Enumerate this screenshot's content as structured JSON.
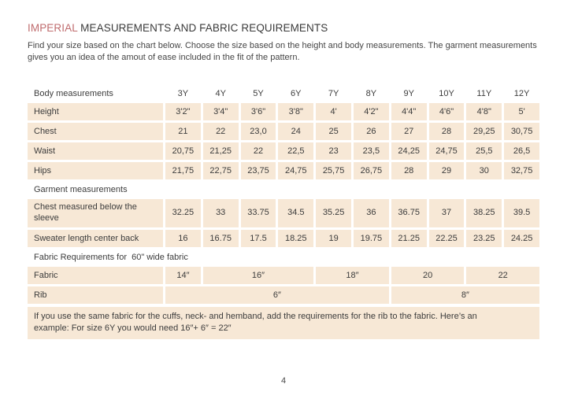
{
  "colors": {
    "accent": "#bf6b6d",
    "cell_bg": "#f7e8d6",
    "text": "#3d3d3d"
  },
  "page": {
    "title_accent": "IMPERIAL",
    "title_rest": " MEASUREMENTS AND FABRIC REQUIREMENTS",
    "intro_line1": "Find your size based on the chart below. Choose the size based on the height and body measurements. The garment measurements",
    "intro_line2": "gives you an idea of the amout of ease included in the fit of the pattern.",
    "page_number": "4"
  },
  "table": {
    "header": {
      "label": "Body measurements",
      "sizes": [
        "3Y",
        "4Y",
        "5Y",
        "6Y",
        "7Y",
        "8Y",
        "9Y",
        "10Y",
        "11Y",
        "12Y"
      ]
    },
    "body_rows": [
      {
        "label": "Height",
        "values": [
          "3'2\"",
          "3'4\"",
          "3'6\"",
          "3'8\"",
          "4'",
          "4'2\"",
          "4'4\"",
          "4'6\"",
          "4'8\"",
          "5'"
        ]
      },
      {
        "label": "Chest",
        "values": [
          "21",
          "22",
          "23,0",
          "24",
          "25",
          "26",
          "27",
          "28",
          "29,25",
          "30,75"
        ]
      },
      {
        "label": "Waist",
        "values": [
          "20,75",
          "21,25",
          "22",
          "22,5",
          "23",
          "23,5",
          "24,25",
          "24,75",
          "25,5",
          "26,5"
        ]
      },
      {
        "label": "Hips",
        "values": [
          "21,75",
          "22,75",
          "23,75",
          "24,75",
          "25,75",
          "26,75",
          "28",
          "29",
          "30",
          "32,75"
        ]
      }
    ],
    "garment_section": "Garment measurements",
    "garment_rows": [
      {
        "label": "Chest measured below the sleeve",
        "values": [
          "32.25",
          "33",
          "33.75",
          "34.5",
          "35.25",
          "36",
          "36.75",
          "37",
          "38.25",
          "39.5"
        ]
      },
      {
        "label": "Sweater length center back",
        "values": [
          "16",
          "16.75",
          "17.5",
          "18.25",
          "19",
          "19.75",
          "21.25",
          "22.25",
          "23.25",
          "24.25"
        ]
      }
    ],
    "fabric_section": "Fabric Requirements for  60\" wide fabric",
    "fabric_row": {
      "label": "Fabric",
      "cells": [
        {
          "text": "14″",
          "span": 1
        },
        {
          "text": "16″",
          "span": 3
        },
        {
          "text": "18″",
          "span": 2
        },
        {
          "text": "20",
          "span": 2
        },
        {
          "text": "22",
          "span": 2
        }
      ]
    },
    "rib_row": {
      "label": "Rib",
      "cells": [
        {
          "text": "6″",
          "span": 6
        },
        {
          "text": "8″",
          "span": 4
        }
      ]
    },
    "note_line1": "If you use the same fabric for the cuffs, neck- and hemband, add the requirements for the rib to the fabric. Here’s an",
    "note_line2": "example: For size 6Y you would need 16″+ 6″ = 22″"
  }
}
